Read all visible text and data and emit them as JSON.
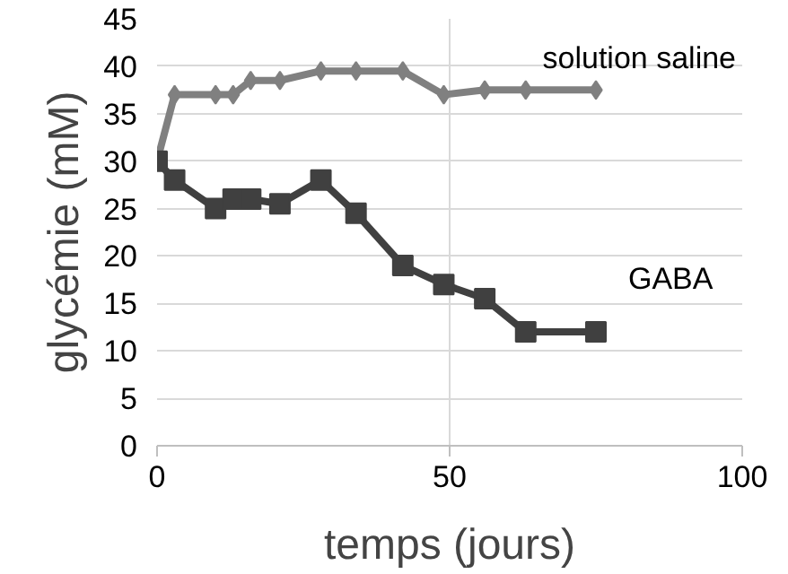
{
  "chart_data": {
    "type": "line",
    "xlabel": "temps (jours)",
    "ylabel": "glycémie (mM)",
    "xlim": [
      0,
      100
    ],
    "xticks": [
      0,
      50,
      100
    ],
    "ylim": [
      0,
      45
    ],
    "yticks": [
      0,
      5,
      10,
      15,
      20,
      25,
      30,
      35,
      40,
      45
    ],
    "grid": true,
    "series": [
      {
        "name": "solution saline",
        "color": "#808080",
        "marker": "diamond",
        "x": [
          0,
          3,
          10,
          13,
          16,
          21,
          28,
          34,
          42,
          49,
          56,
          63,
          75
        ],
        "values": [
          30,
          37,
          37,
          37,
          38.5,
          38.5,
          39.5,
          39.5,
          39.5,
          37,
          37.5,
          37.5,
          37.5
        ]
      },
      {
        "name": "GABA",
        "color": "#404040",
        "marker": "square",
        "x": [
          0,
          3,
          10,
          13,
          16,
          21,
          28,
          34,
          42,
          49,
          56,
          63,
          75
        ],
        "values": [
          30,
          28,
          25,
          26,
          26,
          25.5,
          28,
          24.5,
          19,
          17,
          15.5,
          12,
          12
        ]
      }
    ]
  }
}
